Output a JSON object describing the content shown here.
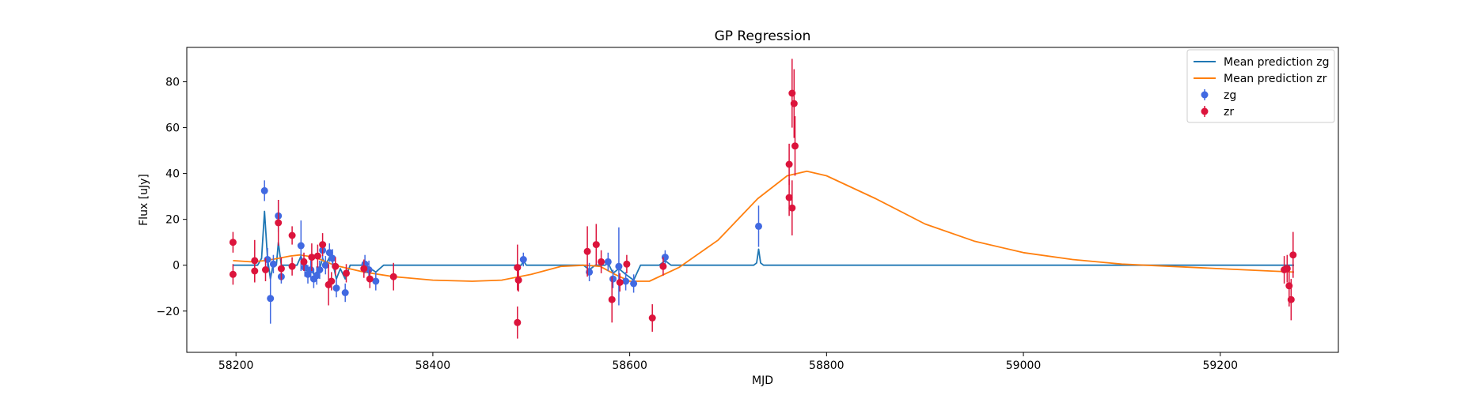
{
  "chart_data": {
    "type": "scatter",
    "title": "GP Regression",
    "xlabel": "MJD",
    "ylabel": "Flux [uJy]",
    "xlim": [
      58150,
      59320
    ],
    "ylim": [
      -38,
      95
    ],
    "xticks": [
      58200,
      58400,
      58600,
      58800,
      59000,
      59200
    ],
    "yticks": [
      -20,
      0,
      20,
      40,
      60,
      80
    ],
    "grid": false,
    "legend_position": "top-right",
    "legend": [
      "Mean prediction zg",
      "Mean prediction zr",
      "zg",
      "zr"
    ],
    "series": [
      {
        "name": "zg",
        "kind": "errorbar",
        "color": "#4169e1",
        "points": [
          {
            "x": 58229,
            "y": 32.5,
            "err": 4.5
          },
          {
            "x": 58232,
            "y": 2.5,
            "err": 5
          },
          {
            "x": 58235,
            "y": -14.5,
            "err": 11
          },
          {
            "x": 58238,
            "y": 0.5,
            "err": 4
          },
          {
            "x": 58243,
            "y": 21.5,
            "err": 7
          },
          {
            "x": 58246,
            "y": -5,
            "err": 3
          },
          {
            "x": 58266,
            "y": 8.5,
            "err": 11
          },
          {
            "x": 58270,
            "y": -1,
            "err": 4
          },
          {
            "x": 58273,
            "y": -4,
            "err": 4
          },
          {
            "x": 58276,
            "y": -2,
            "err": 4
          },
          {
            "x": 58279,
            "y": -6,
            "err": 4
          },
          {
            "x": 58282,
            "y": -4.5,
            "err": 4
          },
          {
            "x": 58285,
            "y": -2,
            "err": 4
          },
          {
            "x": 58288,
            "y": 6.5,
            "err": 4
          },
          {
            "x": 58291,
            "y": 0,
            "err": 4
          },
          {
            "x": 58295,
            "y": 5.5,
            "err": 4
          },
          {
            "x": 58298,
            "y": 3,
            "err": 4
          },
          {
            "x": 58302,
            "y": -10,
            "err": 4
          },
          {
            "x": 58311,
            "y": -12,
            "err": 4
          },
          {
            "x": 58331,
            "y": 0.5,
            "err": 4
          },
          {
            "x": 58335,
            "y": -2,
            "err": 4
          },
          {
            "x": 58342,
            "y": -7,
            "err": 4
          },
          {
            "x": 58492,
            "y": 2.5,
            "err": 3
          },
          {
            "x": 58559,
            "y": -3,
            "err": 4
          },
          {
            "x": 58578,
            "y": 1.5,
            "err": 4
          },
          {
            "x": 58583,
            "y": -6,
            "err": 4
          },
          {
            "x": 58589,
            "y": -0.5,
            "err": 17
          },
          {
            "x": 58596,
            "y": -7,
            "err": 4
          },
          {
            "x": 58604,
            "y": -8,
            "err": 4
          },
          {
            "x": 58636,
            "y": 3.5,
            "err": 3
          },
          {
            "x": 58731,
            "y": 17,
            "err": 9
          }
        ]
      },
      {
        "name": "zr",
        "kind": "errorbar",
        "color": "#dc143c",
        "points": [
          {
            "x": 58197,
            "y": 10,
            "err": 4.5
          },
          {
            "x": 58197,
            "y": -4,
            "err": 4.5
          },
          {
            "x": 58219,
            "y": 2,
            "err": 9
          },
          {
            "x": 58219,
            "y": -2.5,
            "err": 5
          },
          {
            "x": 58230,
            "y": -2,
            "err": 5
          },
          {
            "x": 58243,
            "y": 18.5,
            "err": 10
          },
          {
            "x": 58246,
            "y": -1.5,
            "err": 5
          },
          {
            "x": 58257,
            "y": 13,
            "err": 4
          },
          {
            "x": 58257,
            "y": -0.5,
            "err": 4
          },
          {
            "x": 58269,
            "y": 1.5,
            "err": 4
          },
          {
            "x": 58277,
            "y": 3.5,
            "err": 6
          },
          {
            "x": 58283,
            "y": 4,
            "err": 5
          },
          {
            "x": 58288,
            "y": 9,
            "err": 5
          },
          {
            "x": 58294,
            "y": -8.5,
            "err": 9
          },
          {
            "x": 58297,
            "y": -7,
            "err": 4
          },
          {
            "x": 58301,
            "y": -0.5,
            "err": 4
          },
          {
            "x": 58312,
            "y": -3.5,
            "err": 4
          },
          {
            "x": 58330,
            "y": -1.5,
            "err": 4
          },
          {
            "x": 58336,
            "y": -6,
            "err": 4
          },
          {
            "x": 58360,
            "y": -5,
            "err": 6
          },
          {
            "x": 58486,
            "y": -1,
            "err": 10
          },
          {
            "x": 58486,
            "y": -25,
            "err": 7
          },
          {
            "x": 58487,
            "y": -6.5,
            "err": 5
          },
          {
            "x": 58557,
            "y": 6,
            "err": 11
          },
          {
            "x": 58566,
            "y": 9,
            "err": 9
          },
          {
            "x": 58571,
            "y": 1.5,
            "err": 5
          },
          {
            "x": 58582,
            "y": -15,
            "err": 10
          },
          {
            "x": 58590,
            "y": -7.5,
            "err": 4
          },
          {
            "x": 58597,
            "y": 0.5,
            "err": 4
          },
          {
            "x": 58623,
            "y": -23,
            "err": 6
          },
          {
            "x": 58634,
            "y": -0.5,
            "err": 4
          },
          {
            "x": 58762,
            "y": 44,
            "err": 9
          },
          {
            "x": 58762,
            "y": 29.5,
            "err": 8
          },
          {
            "x": 58765,
            "y": 75,
            "err": 15
          },
          {
            "x": 58765,
            "y": 25,
            "err": 12
          },
          {
            "x": 58767,
            "y": 70.5,
            "err": 15
          },
          {
            "x": 58768,
            "y": 52,
            "err": 13
          },
          {
            "x": 59265,
            "y": -2,
            "err": 6
          },
          {
            "x": 59268,
            "y": -1.5,
            "err": 6
          },
          {
            "x": 59270,
            "y": -9,
            "err": 9
          },
          {
            "x": 59272,
            "y": -15,
            "err": 9
          },
          {
            "x": 59274,
            "y": 4.5,
            "err": 10
          }
        ]
      },
      {
        "name": "Mean prediction zg",
        "kind": "line",
        "color": "#1f77b4",
        "x": [
          58197,
          58222,
          58226,
          58229,
          58232,
          58235,
          58238,
          58241,
          58243,
          58246,
          58249,
          58262,
          58266,
          58270,
          58273,
          58276,
          58279,
          58282,
          58285,
          58288,
          58291,
          58295,
          58298,
          58302,
          58306,
          58311,
          58316,
          58331,
          58335,
          58342,
          58350,
          58485,
          58490,
          58492,
          58495,
          58553,
          58559,
          58565,
          58575,
          58578,
          58583,
          58589,
          58596,
          58604,
          58611,
          58630,
          58636,
          58642,
          58726,
          58729,
          58731,
          58733,
          58736,
          59275
        ],
        "y": [
          0,
          0,
          3,
          23.5,
          3,
          -6,
          1,
          0,
          10,
          0,
          0,
          0,
          4,
          -1.5,
          -3,
          -1.5,
          -4,
          -3,
          -1.5,
          3,
          0,
          3.5,
          1.5,
          -6,
          -1.5,
          -6,
          0,
          0,
          -1,
          -3,
          0,
          0,
          0,
          2,
          0,
          0,
          -2,
          0,
          0,
          1,
          -3.5,
          -1.5,
          -4,
          -6.5,
          0,
          0,
          2,
          0,
          0,
          1,
          7,
          1,
          0,
          0
        ]
      },
      {
        "name": "Mean prediction zr",
        "kind": "line",
        "color": "#ff7f0e",
        "x": [
          58197,
          58215,
          58230,
          58243,
          58255,
          58265,
          58280,
          58300,
          58330,
          58360,
          58400,
          58440,
          58470,
          58500,
          58530,
          58555,
          58570,
          58585,
          58600,
          58620,
          58650,
          58690,
          58730,
          58760,
          58780,
          58800,
          58850,
          58900,
          58950,
          59000,
          59050,
          59100,
          59150,
          59200,
          59250,
          59275
        ],
        "y": [
          2,
          1.5,
          2,
          3,
          4,
          4.5,
          3.5,
          0,
          -3,
          -5,
          -6.5,
          -7,
          -6.5,
          -4,
          -0.5,
          0,
          -0.5,
          -4,
          -7,
          -7,
          -1,
          11,
          29,
          39,
          41,
          39,
          29,
          18,
          10.5,
          5.5,
          2.5,
          0.5,
          -0.5,
          -1.5,
          -2.5,
          -3
        ]
      }
    ]
  }
}
